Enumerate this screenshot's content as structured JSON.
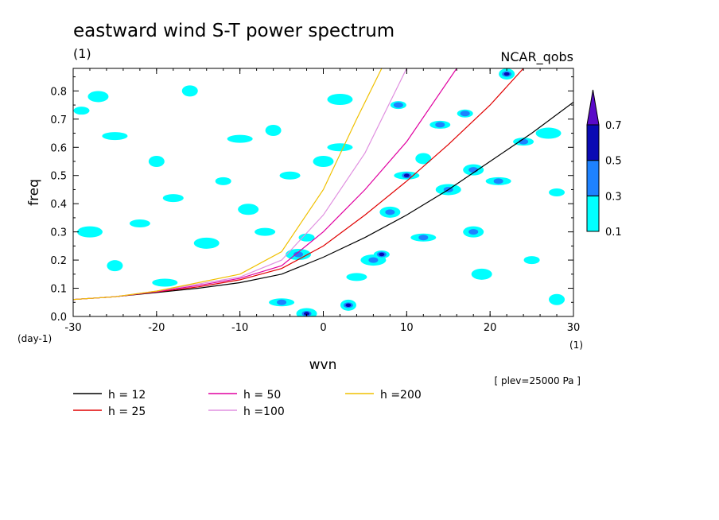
{
  "chart_data": {
    "type": "heatmap",
    "title": "eastward wind S-T power spectrum",
    "subtitle_left": "(1)",
    "subtitle_right": "NCAR_qobs",
    "xlabel": "wvn",
    "ylabel": "freq",
    "x_unit": "(1)",
    "y_unit": "(day-1)",
    "note": "[ plev=25000 Pa ]",
    "xlim": [
      -30,
      30
    ],
    "ylim": [
      0,
      0.88
    ],
    "x_ticks": [
      -30,
      -20,
      -10,
      0,
      10,
      20,
      30
    ],
    "y_ticks": [
      0.0,
      0.1,
      0.2,
      0.3,
      0.4,
      0.5,
      0.6,
      0.7,
      0.8
    ],
    "x_tick_labels": [
      "-30",
      "-20",
      "-10",
      "0",
      "10",
      "20",
      "30"
    ],
    "y_tick_labels": [
      "0.0",
      "0.1",
      "0.2",
      "0.3",
      "0.4",
      "0.5",
      "0.6",
      "0.7",
      "0.8"
    ],
    "colorbar": {
      "levels": [
        "0.1",
        "0.3",
        "0.5",
        "0.7"
      ],
      "colors": [
        "#00ffff",
        "#1e82ff",
        "#0a0ab4",
        "#5a0ac8"
      ]
    },
    "contour_blobs": [
      {
        "x": -29,
        "y": 0.73,
        "level": 1
      },
      {
        "x": -27,
        "y": 0.78,
        "level": 1
      },
      {
        "x": -25,
        "y": 0.64,
        "level": 1
      },
      {
        "x": -20,
        "y": 0.55,
        "level": 1
      },
      {
        "x": -18,
        "y": 0.42,
        "level": 1
      },
      {
        "x": -14,
        "y": 0.26,
        "level": 1
      },
      {
        "x": -12,
        "y": 0.48,
        "level": 1
      },
      {
        "x": -9,
        "y": 0.38,
        "level": 1
      },
      {
        "x": -10,
        "y": 0.63,
        "level": 1
      },
      {
        "x": -6,
        "y": 0.66,
        "level": 1
      },
      {
        "x": -4,
        "y": 0.5,
        "level": 1
      },
      {
        "x": -3,
        "y": 0.22,
        "level": 2
      },
      {
        "x": -2,
        "y": 0.28,
        "level": 1
      },
      {
        "x": 0,
        "y": 0.55,
        "level": 1
      },
      {
        "x": 2,
        "y": 0.6,
        "level": 1
      },
      {
        "x": 3,
        "y": 0.04,
        "level": 3
      },
      {
        "x": 4,
        "y": 0.14,
        "level": 1
      },
      {
        "x": 6,
        "y": 0.2,
        "level": 2
      },
      {
        "x": 7,
        "y": 0.22,
        "level": 3
      },
      {
        "x": 8,
        "y": 0.37,
        "level": 2
      },
      {
        "x": 10,
        "y": 0.5,
        "level": 3
      },
      {
        "x": 12,
        "y": 0.56,
        "level": 1
      },
      {
        "x": 14,
        "y": 0.68,
        "level": 2
      },
      {
        "x": 15,
        "y": 0.45,
        "level": 2
      },
      {
        "x": 17,
        "y": 0.72,
        "level": 2
      },
      {
        "x": 18,
        "y": 0.52,
        "level": 2
      },
      {
        "x": 21,
        "y": 0.48,
        "level": 2
      },
      {
        "x": 22,
        "y": 0.86,
        "level": 3
      },
      {
        "x": 24,
        "y": 0.62,
        "level": 2
      },
      {
        "x": 27,
        "y": 0.65,
        "level": 1
      },
      {
        "x": 28,
        "y": 0.44,
        "level": 1
      },
      {
        "x": -2,
        "y": 0.01,
        "level": 3
      },
      {
        "x": -5,
        "y": 0.05,
        "level": 2
      },
      {
        "x": -16,
        "y": 0.8,
        "level": 1
      },
      {
        "x": -22,
        "y": 0.33,
        "level": 1
      },
      {
        "x": -28,
        "y": 0.3,
        "level": 1
      },
      {
        "x": 25,
        "y": 0.2,
        "level": 1
      },
      {
        "x": 18,
        "y": 0.3,
        "level": 2
      },
      {
        "x": 12,
        "y": 0.28,
        "level": 2
      },
      {
        "x": 28,
        "y": 0.06,
        "level": 1
      },
      {
        "x": -7,
        "y": 0.3,
        "level": 1
      },
      {
        "x": 2,
        "y": 0.77,
        "level": 1
      },
      {
        "x": 9,
        "y": 0.75,
        "level": 2
      },
      {
        "x": 19,
        "y": 0.15,
        "level": 1
      },
      {
        "x": -19,
        "y": 0.12,
        "level": 1
      },
      {
        "x": -25,
        "y": 0.18,
        "level": 1
      }
    ],
    "series": [
      {
        "name": "h = 12",
        "color": "#000000",
        "x": [
          -30,
          -25,
          -20,
          -15,
          -10,
          -5,
          0,
          5,
          10,
          15,
          20,
          25,
          30
        ],
        "y": [
          0.06,
          0.07,
          0.085,
          0.1,
          0.12,
          0.15,
          0.21,
          0.28,
          0.36,
          0.45,
          0.55,
          0.65,
          0.76
        ]
      },
      {
        "name": "h = 25",
        "color": "#e00000",
        "x": [
          -30,
          -25,
          -20,
          -15,
          -10,
          -5,
          0,
          5,
          10,
          15,
          20,
          24
        ],
        "y": [
          0.06,
          0.07,
          0.087,
          0.105,
          0.13,
          0.17,
          0.25,
          0.36,
          0.48,
          0.61,
          0.75,
          0.88
        ]
      },
      {
        "name": "h = 50",
        "color": "#e000a0",
        "x": [
          -30,
          -25,
          -20,
          -15,
          -10,
          -5,
          0,
          5,
          10,
          16
        ],
        "y": [
          0.06,
          0.07,
          0.088,
          0.11,
          0.135,
          0.18,
          0.3,
          0.45,
          0.62,
          0.88
        ]
      },
      {
        "name": "h =100",
        "color": "#e090e0",
        "x": [
          -30,
          -25,
          -20,
          -15,
          -10,
          -5,
          0,
          5,
          10
        ],
        "y": [
          0.06,
          0.07,
          0.09,
          0.115,
          0.14,
          0.2,
          0.36,
          0.58,
          0.88
        ]
      },
      {
        "name": "h =200",
        "color": "#f0c000",
        "x": [
          -30,
          -25,
          -20,
          -15,
          -10,
          -5,
          0,
          4,
          7
        ],
        "y": [
          0.06,
          0.07,
          0.09,
          0.12,
          0.15,
          0.23,
          0.45,
          0.7,
          0.88
        ]
      }
    ]
  }
}
